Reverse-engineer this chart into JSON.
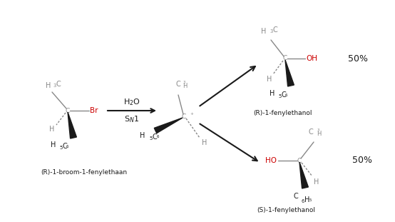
{
  "bg": "#ffffff",
  "black": "#1a1a1a",
  "gray": "#888888",
  "red": "#cc0000",
  "figsize": [
    5.54,
    3.11
  ],
  "dpi": 100,
  "label1": "(R)-1-broom-1-fenylethaan",
  "label2": "(R)-1-fenylethanol",
  "label3": "(S)-1-fenylethanol",
  "pct": "50%",
  "h2o_label": "H$_2$O",
  "sn1_label": "S$_N$1"
}
